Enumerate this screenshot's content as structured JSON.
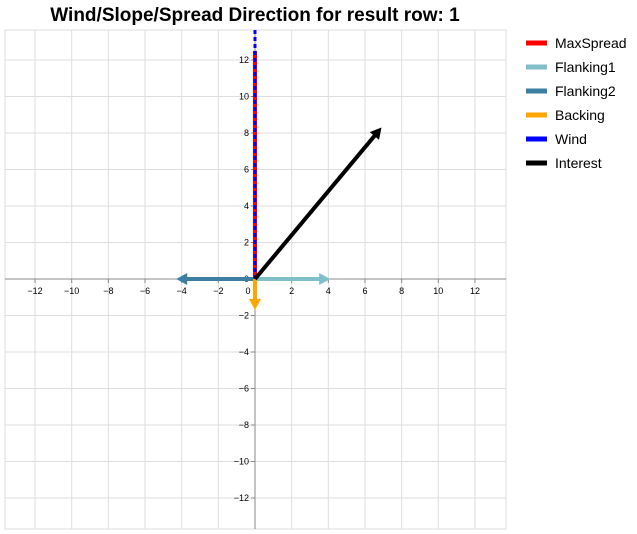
{
  "chart_data": {
    "type": "line",
    "title": "Wind/Slope/Spread Direction for result row: 1",
    "xlabel": "",
    "ylabel": "",
    "xlim": [
      -13.5,
      13.8
    ],
    "ylim": [
      -13.7,
      13.7
    ],
    "grid": true,
    "legend_position": "right",
    "x_ticks": [
      "−12",
      "−10",
      "−8",
      "−6",
      "−4",
      "−2",
      "0",
      "2",
      "4",
      "6",
      "8",
      "10",
      "12"
    ],
    "y_ticks": [
      "12",
      "10",
      "8",
      "6",
      "4",
      "2",
      "0",
      "−2",
      "−4",
      "−6",
      "−8",
      "−10",
      "−12"
    ],
    "x_tick_values": [
      -12,
      -10,
      -8,
      -6,
      -4,
      -2,
      0,
      2,
      4,
      6,
      8,
      10,
      12
    ],
    "y_tick_values": [
      12,
      10,
      8,
      6,
      4,
      2,
      0,
      -2,
      -4,
      -6,
      -8,
      -10,
      -12
    ],
    "series": [
      {
        "name": "MaxSpread",
        "color": "#ff0000",
        "x": [
          0,
          0
        ],
        "y": [
          0,
          12.5
        ],
        "dashed": false,
        "arrow": false
      },
      {
        "name": "Flanking1",
        "color": "#7fbfc7",
        "x": [
          0,
          4.1
        ],
        "y": [
          0,
          0
        ],
        "dashed": false,
        "arrow": true
      },
      {
        "name": "Flanking2",
        "color": "#3c7fa3",
        "x": [
          0,
          -4.3
        ],
        "y": [
          0,
          0
        ],
        "dashed": false,
        "arrow": true
      },
      {
        "name": "Backing",
        "color": "#ffa500",
        "x": [
          0,
          0
        ],
        "y": [
          0,
          -1.7
        ],
        "dashed": false,
        "arrow": true
      },
      {
        "name": "Wind",
        "color": "#0000ff",
        "x": [
          0,
          0
        ],
        "y": [
          0,
          13.7
        ],
        "dashed": true,
        "arrow": false
      },
      {
        "name": "Interest",
        "color": "#000000",
        "x": [
          0,
          6.9
        ],
        "y": [
          0,
          8.3
        ],
        "dashed": false,
        "arrow": true
      }
    ]
  }
}
